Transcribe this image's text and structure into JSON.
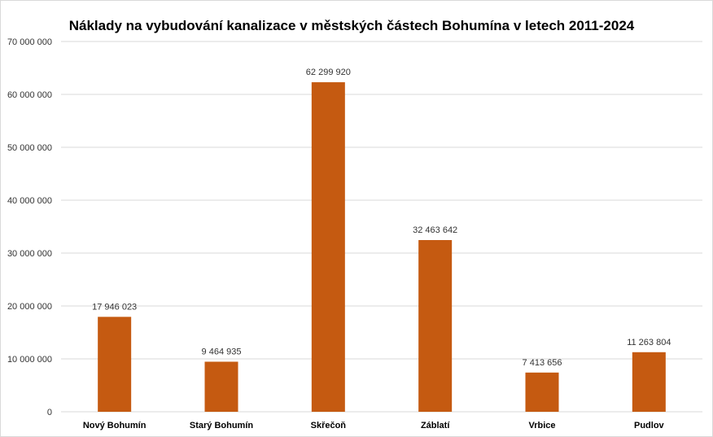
{
  "chart_data": {
    "type": "bar",
    "title": "Náklady na vybudování kanalizace v městských částech Bohumína v letech 2011-2024",
    "xlabel": "",
    "ylabel": "",
    "categories": [
      "Nový Bohumín",
      "Starý Bohumín",
      "Skřečoň",
      "Záblatí",
      "Vrbice",
      "Pudlov"
    ],
    "values": [
      17946023,
      9464935,
      62299920,
      32463642,
      7413656,
      11263804
    ],
    "data_labels": [
      "17 946 023",
      "9 464 935",
      "62 299 920",
      "32 463 642",
      "7 413 656",
      "11 263 804"
    ],
    "ylim": [
      0,
      70000000
    ],
    "y_ticks": [
      0,
      10000000,
      20000000,
      30000000,
      40000000,
      50000000,
      60000000,
      70000000
    ],
    "y_tick_labels": [
      "0",
      "10 000 000",
      "20 000 000",
      "30 000 000",
      "40 000 000",
      "50 000 000",
      "60 000 000",
      "70 000 000"
    ],
    "grid": true,
    "legend": "none",
    "bar_color": "#C55A11"
  }
}
